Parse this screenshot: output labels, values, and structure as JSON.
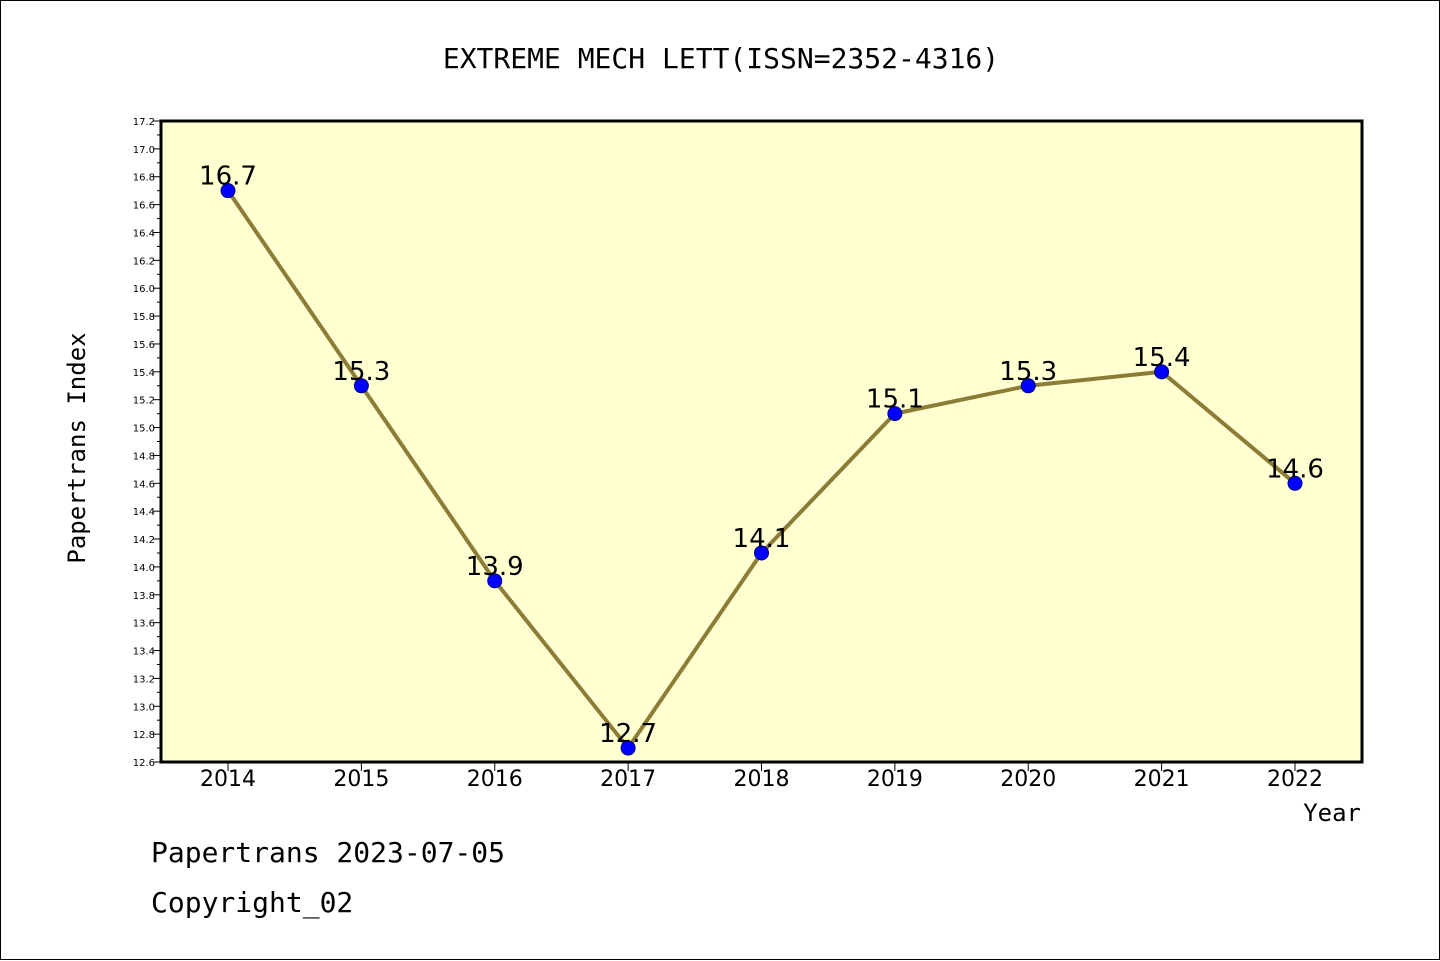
{
  "chart_data": {
    "type": "line",
    "title": "EXTREME MECH LETT(ISSN=2352-4316)",
    "xlabel": "Year",
    "ylabel": "Papertrans Index",
    "categories": [
      "2014",
      "2015",
      "2016",
      "2017",
      "2018",
      "2019",
      "2020",
      "2021",
      "2022"
    ],
    "values": [
      16.7,
      15.3,
      13.9,
      12.7,
      14.1,
      15.1,
      15.3,
      15.4,
      14.6
    ],
    "data_labels": [
      "16.7",
      "15.3",
      "13.9",
      "12.7",
      "14.1",
      "15.1",
      "15.3",
      "15.4",
      "14.6"
    ],
    "ylim": [
      12.6,
      17.2
    ],
    "yticks": [
      "12.6",
      "12.8",
      "13.0",
      "13.2",
      "13.4",
      "13.6",
      "13.8",
      "14.0",
      "14.2",
      "14.4",
      "14.6",
      "14.8",
      "15.0",
      "15.2",
      "15.4",
      "15.6",
      "15.8",
      "16.0",
      "16.2",
      "16.4",
      "16.6",
      "16.8",
      "17.0",
      "17.2"
    ],
    "grid": false,
    "colors": {
      "plot_background": "#ffffd2",
      "line": "#8b7d35",
      "marker": "#0000ff",
      "axis": "#000000"
    }
  },
  "footer": {
    "line1": "Papertrans 2023-07-05",
    "line2": "Copyright_02"
  }
}
